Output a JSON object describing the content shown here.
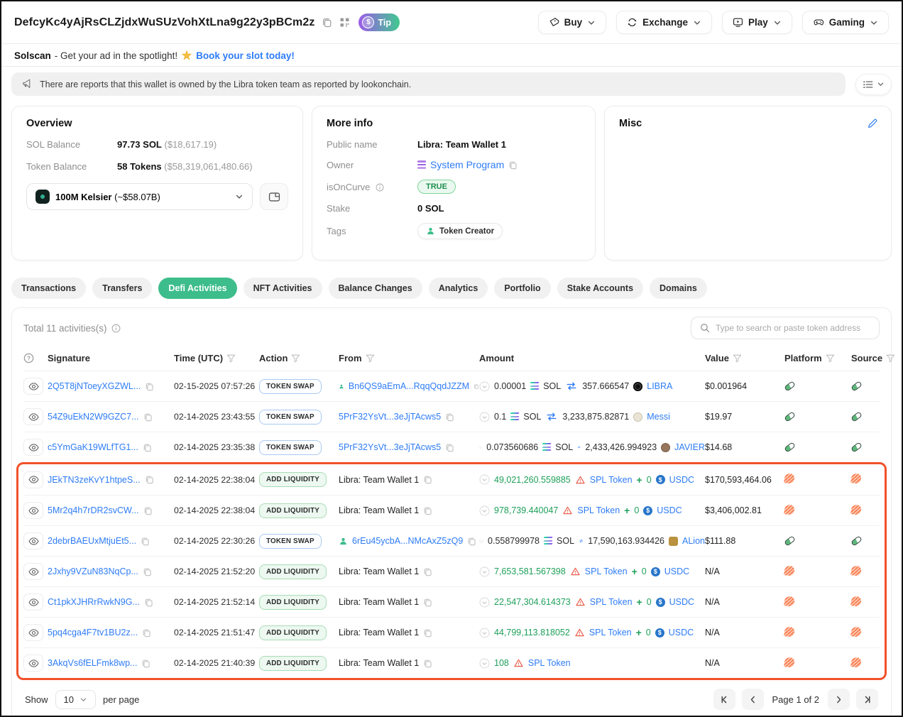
{
  "header": {
    "address": "DefcyKc4yAjRsCLZjdxWuSUzVohXtLna9g22y3pBCm2z",
    "tip_label": "Tip",
    "nav": [
      {
        "label": "Buy",
        "icon": "buy"
      },
      {
        "label": "Exchange",
        "icon": "exchange"
      },
      {
        "label": "Play",
        "icon": "play"
      },
      {
        "label": "Gaming",
        "icon": "gaming"
      }
    ]
  },
  "ad": {
    "brand": "Solscan",
    "text": "- Get your ad in the spotlight!",
    "link": "Book your slot today!"
  },
  "alert": {
    "text": "There are reports that this wallet is owned by the Libra token team as reported by lookonchain."
  },
  "overview": {
    "title": "Overview",
    "sol_balance_label": "SOL Balance",
    "sol_balance": "97.73 SOL",
    "sol_balance_usd": "($18,617.19)",
    "token_balance_label": "Token Balance",
    "token_balance": "58 Tokens",
    "token_balance_usd": "($58,319,061,480.66)",
    "token_selector_name": "100M Kelsier",
    "token_selector_value": "(~$58.07B)"
  },
  "more_info": {
    "title": "More info",
    "public_name_label": "Public name",
    "public_name": "Libra: Team Wallet 1",
    "owner_label": "Owner",
    "owner": "System Program",
    "isoncurve_label": "isOnCurve",
    "isoncurve": "TRUE",
    "stake_label": "Stake",
    "stake": "0 SOL",
    "tags_label": "Tags",
    "tag": "Token Creator"
  },
  "misc": {
    "title": "Misc"
  },
  "tabs": [
    {
      "label": "Transactions",
      "active": false
    },
    {
      "label": "Transfers",
      "active": false
    },
    {
      "label": "Defi Activities",
      "active": true
    },
    {
      "label": "NFT Activities",
      "active": false
    },
    {
      "label": "Balance Changes",
      "active": false
    },
    {
      "label": "Analytics",
      "active": false
    },
    {
      "label": "Portfolio",
      "active": false
    },
    {
      "label": "Stake Accounts",
      "active": false
    },
    {
      "label": "Domains",
      "active": false
    }
  ],
  "activities": {
    "total_text": "Total 11 activities(s)",
    "search_placeholder": "Type to search or paste token address",
    "columns": {
      "signature": "Signature",
      "time": "Time (UTC)",
      "action": "Action",
      "from": "From",
      "amount": "Amount",
      "value": "Value",
      "platform": "Platform",
      "source": "Source"
    },
    "rows": [
      {
        "signature": "2Q5T8jNToeyXGZWL...",
        "time": "02-15-2025 07:57:26",
        "action": {
          "label": "TOKEN SWAP",
          "type": "swap"
        },
        "from": {
          "name": "Bn6QS9aEmA...RqqQqdJZZM",
          "link": true,
          "person": true
        },
        "amount": {
          "a": "0.00001",
          "a_tok": "sol",
          "a_label": "SOL",
          "a_link": false,
          "op": "swap",
          "b": "357.666547",
          "b_tok": "libra",
          "b_label": "LIBRA",
          "green": false
        },
        "value": "$0.001964",
        "platform": "pump",
        "source": "pump",
        "highlighted": false
      },
      {
        "signature": "54Z9uEkN2W9GZC7...",
        "time": "02-14-2025 23:43:55",
        "action": {
          "label": "TOKEN SWAP",
          "type": "swap"
        },
        "from": {
          "name": "5PrF32YsVt...3eJjTAcws5",
          "link": true,
          "person": false
        },
        "amount": {
          "a": "0.1",
          "a_tok": "sol",
          "a_label": "SOL",
          "a_link": false,
          "op": "swap",
          "b": "3,233,875.82871",
          "b_tok": "messi",
          "b_label": "Messi",
          "green": false
        },
        "value": "$19.97",
        "platform": "pump",
        "source": "pump",
        "highlighted": false
      },
      {
        "signature": "c5YmGaK19WLfTG1...",
        "time": "02-14-2025 23:35:38",
        "action": {
          "label": "TOKEN SWAP",
          "type": "swap"
        },
        "from": {
          "name": "5PrF32YsVt...3eJjTAcws5",
          "link": true,
          "person": false
        },
        "amount": {
          "a": "0.073560686",
          "a_tok": "sol",
          "a_label": "SOL",
          "a_link": false,
          "op": "swap",
          "b": "2,433,426.994923",
          "b_tok": "javier",
          "b_label": "JAVIER",
          "green": false
        },
        "value": "$14.68",
        "platform": "pump",
        "source": "pump",
        "highlighted": false
      },
      {
        "signature": "JEkTN3zeKvY1htpeS...",
        "time": "02-14-2025 22:38:04",
        "action": {
          "label": "ADD LIQUIDITY",
          "type": "liquidity"
        },
        "from": {
          "name": "Libra: Team Wallet 1",
          "link": false,
          "person": false
        },
        "amount": {
          "a": "49,021,260.559885",
          "a_tok": "warn",
          "a_label": "SPL Token",
          "a_link": true,
          "op": "plus",
          "b": "0",
          "b_tok": "usdc",
          "b_label": "USDC",
          "green": true
        },
        "value": "$170,593,464.06",
        "platform": "meteora",
        "source": "meteora",
        "highlighted": true
      },
      {
        "signature": "5Mr2q4h7rDR2svCW...",
        "time": "02-14-2025 22:38:04",
        "action": {
          "label": "ADD LIQUIDITY",
          "type": "liquidity"
        },
        "from": {
          "name": "Libra: Team Wallet 1",
          "link": false,
          "person": false
        },
        "amount": {
          "a": "978,739.440047",
          "a_tok": "warn",
          "a_label": "SPL Token",
          "a_link": true,
          "op": "plus",
          "b": "0",
          "b_tok": "usdc",
          "b_label": "USDC",
          "green": true
        },
        "value": "$3,406,002.81",
        "platform": "meteora",
        "source": "meteora",
        "highlighted": true
      },
      {
        "signature": "2debrBAEUxMtjuEt5...",
        "time": "02-14-2025 22:30:26",
        "action": {
          "label": "TOKEN SWAP",
          "type": "swap"
        },
        "from": {
          "name": "6rEu45ycbA...NMcAxZ5zQ9",
          "link": true,
          "person": true
        },
        "amount": {
          "a": "0.558799978",
          "a_tok": "sol",
          "a_label": "SOL",
          "a_link": false,
          "op": "swap",
          "b": "17,590,163.934426",
          "b_tok": "alion",
          "b_label": "ALion",
          "green": false
        },
        "value": "$111.88",
        "platform": "pump",
        "source": "pump",
        "highlighted": true
      },
      {
        "signature": "2Jxhy9VZuN83NqCp...",
        "time": "02-14-2025 21:52:20",
        "action": {
          "label": "ADD LIQUIDITY",
          "type": "liquidity"
        },
        "from": {
          "name": "Libra: Team Wallet 1",
          "link": false,
          "person": false
        },
        "amount": {
          "a": "7,653,581.567398",
          "a_tok": "warn",
          "a_label": "SPL Token",
          "a_link": true,
          "op": "plus",
          "b": "0",
          "b_tok": "usdc",
          "b_label": "USDC",
          "green": true
        },
        "value": "N/A",
        "platform": "meteora",
        "source": "meteora",
        "highlighted": true
      },
      {
        "signature": "Ct1pkXJHRrRwkN9G...",
        "time": "02-14-2025 21:52:14",
        "action": {
          "label": "ADD LIQUIDITY",
          "type": "liquidity"
        },
        "from": {
          "name": "Libra: Team Wallet 1",
          "link": false,
          "person": false
        },
        "amount": {
          "a": "22,547,304.614373",
          "a_tok": "warn",
          "a_label": "SPL Token",
          "a_link": true,
          "op": "plus",
          "b": "0",
          "b_tok": "usdc",
          "b_label": "USDC",
          "green": true
        },
        "value": "N/A",
        "platform": "meteora",
        "source": "meteora",
        "highlighted": true
      },
      {
        "signature": "5pq4cga4F7tv1BU2z...",
        "time": "02-14-2025 21:51:47",
        "action": {
          "label": "ADD LIQUIDITY",
          "type": "liquidity"
        },
        "from": {
          "name": "Libra: Team Wallet 1",
          "link": false,
          "person": false
        },
        "amount": {
          "a": "44,799,113.818052",
          "a_tok": "warn",
          "a_label": "SPL Token",
          "a_link": true,
          "op": "plus",
          "b": "0",
          "b_tok": "usdc",
          "b_label": "USDC",
          "green": true
        },
        "value": "N/A",
        "platform": "meteora",
        "source": "meteora",
        "highlighted": true
      },
      {
        "signature": "3AkqVs6fELFmk8wp...",
        "time": "02-14-2025 21:40:39",
        "action": {
          "label": "ADD LIQUIDITY",
          "type": "liquidity"
        },
        "from": {
          "name": "Libra: Team Wallet 1",
          "link": false,
          "person": false
        },
        "amount": {
          "a": "108",
          "a_tok": "warn",
          "a_label": "SPL Token",
          "a_link": true,
          "op": null,
          "b": null,
          "b_tok": null,
          "b_label": null,
          "green": true
        },
        "value": "N/A",
        "platform": "meteora",
        "source": "meteora",
        "highlighted": true
      }
    ]
  },
  "pagination": {
    "show_label": "Show",
    "page_size": "10",
    "per_page_label": "per page",
    "page_text": "Page 1 of 2"
  },
  "colors": {
    "accent_green": "#3dbd8b",
    "link_blue": "#2e7cf6",
    "highlight_red": "#f1512a",
    "tip_gradient_start": "#9d5ce8",
    "tip_gradient_end": "#3fc98f"
  }
}
